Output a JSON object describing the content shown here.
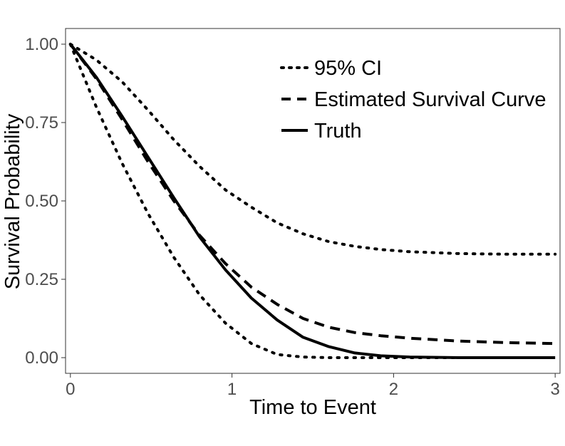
{
  "chart_data": {
    "type": "line",
    "title": "",
    "xlabel": "Time to Event",
    "ylabel": "Survival Probability",
    "xlim": [
      -0.03,
      3.03
    ],
    "ylim": [
      -0.05,
      1.05
    ],
    "x_ticks": [
      0,
      1,
      2,
      3
    ],
    "x_tick_labels": [
      "0",
      "1",
      "2",
      "3"
    ],
    "y_ticks": [
      0.0,
      0.25,
      0.5,
      0.75,
      1.0
    ],
    "y_tick_labels": [
      "0.00",
      "0.25",
      "0.50",
      "0.75",
      "1.00"
    ],
    "grid": false,
    "legend": {
      "position": "top-right",
      "entries": [
        {
          "label": "95% CI",
          "style": "dotted"
        },
        {
          "label": "Estimated Survival Curve",
          "style": "dashed"
        },
        {
          "label": "Truth",
          "style": "solid"
        }
      ]
    },
    "series": [
      {
        "name": "Truth",
        "style": "solid",
        "x": [
          0,
          0.16,
          0.32,
          0.48,
          0.64,
          0.8,
          0.96,
          1.12,
          1.28,
          1.44,
          1.6,
          1.76,
          1.92,
          2.1,
          2.4,
          2.7,
          3.0
        ],
        "y": [
          1.0,
          0.895,
          0.77,
          0.64,
          0.51,
          0.385,
          0.28,
          0.19,
          0.12,
          0.065,
          0.035,
          0.015,
          0.006,
          0.002,
          0.0,
          0.0,
          0.0
        ]
      },
      {
        "name": "Estimated Survival Curve",
        "style": "dashed",
        "x": [
          0,
          0.16,
          0.32,
          0.48,
          0.64,
          0.8,
          0.96,
          1.12,
          1.28,
          1.44,
          1.6,
          1.76,
          1.92,
          2.1,
          2.4,
          2.7,
          3.0
        ],
        "y": [
          1.0,
          0.89,
          0.76,
          0.625,
          0.5,
          0.39,
          0.3,
          0.225,
          0.17,
          0.125,
          0.097,
          0.08,
          0.07,
          0.062,
          0.053,
          0.048,
          0.045
        ]
      },
      {
        "name": "95% CI upper",
        "style": "dotted",
        "x": [
          0,
          0.16,
          0.32,
          0.48,
          0.64,
          0.8,
          0.96,
          1.12,
          1.28,
          1.44,
          1.6,
          1.76,
          1.92,
          2.1,
          2.4,
          2.7,
          3.0
        ],
        "y": [
          1.0,
          0.95,
          0.88,
          0.79,
          0.695,
          0.61,
          0.535,
          0.48,
          0.43,
          0.395,
          0.37,
          0.355,
          0.345,
          0.338,
          0.332,
          0.33,
          0.33
        ]
      },
      {
        "name": "95% CI lower",
        "style": "dotted",
        "x": [
          0,
          0.16,
          0.32,
          0.48,
          0.64,
          0.8,
          0.96,
          1.12,
          1.28,
          1.44,
          1.6,
          1.76,
          1.92,
          2.1,
          2.4,
          2.7,
          3.0
        ],
        "y": [
          1.0,
          0.8,
          0.62,
          0.46,
          0.32,
          0.2,
          0.11,
          0.045,
          0.01,
          0.002,
          0.0,
          0.0,
          0.0,
          0.0,
          0.0,
          0.0,
          0.0
        ]
      }
    ]
  }
}
